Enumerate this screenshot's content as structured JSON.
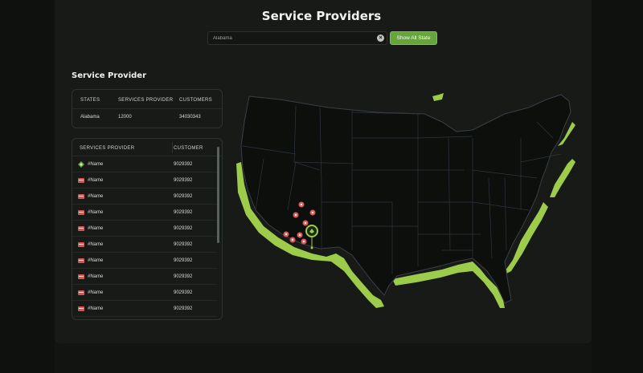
{
  "page": {
    "title": "Service Providers"
  },
  "search": {
    "value": "Alabama",
    "clear_icon": "close-circle-icon"
  },
  "show_all_button": {
    "label": "Show All State",
    "color": "#66a53a"
  },
  "summary": {
    "title": "Service Provider",
    "headers": {
      "states": "STATES",
      "providers": "SERVICES PROVIDER",
      "customers": "CUSTOMERS"
    },
    "row": {
      "state": "Alabama",
      "providers": "12000",
      "customers": "34030343"
    }
  },
  "providers_table": {
    "headers": {
      "provider": "SERVICES PROVIDER",
      "customer": "CUSTOMER"
    },
    "rows": [
      {
        "name": "#Name",
        "customer": "9029392",
        "icon": "green-logo-icon"
      },
      {
        "name": "#Name",
        "customer": "9029392",
        "icon": "red-store-icon"
      },
      {
        "name": "#Name",
        "customer": "9029392",
        "icon": "red-store-icon"
      },
      {
        "name": "#Name",
        "customer": "9029392",
        "icon": "red-store-icon"
      },
      {
        "name": "#Name",
        "customer": "9029392",
        "icon": "red-store-icon"
      },
      {
        "name": "#Name",
        "customer": "9029392",
        "icon": "red-store-icon"
      },
      {
        "name": "#Name",
        "customer": "9029392",
        "icon": "red-store-icon"
      },
      {
        "name": "#Name",
        "customer": "9029392",
        "icon": "red-store-icon"
      },
      {
        "name": "#Name",
        "customer": "9029392",
        "icon": "red-store-icon"
      },
      {
        "name": "#Name",
        "customer": "9029392",
        "icon": "red-store-icon"
      }
    ]
  },
  "colors": {
    "accent": "#9ccc4a",
    "marker": "#e05a5a",
    "map_fill": "#0d0f0d",
    "map_border": "#3a3f48"
  }
}
